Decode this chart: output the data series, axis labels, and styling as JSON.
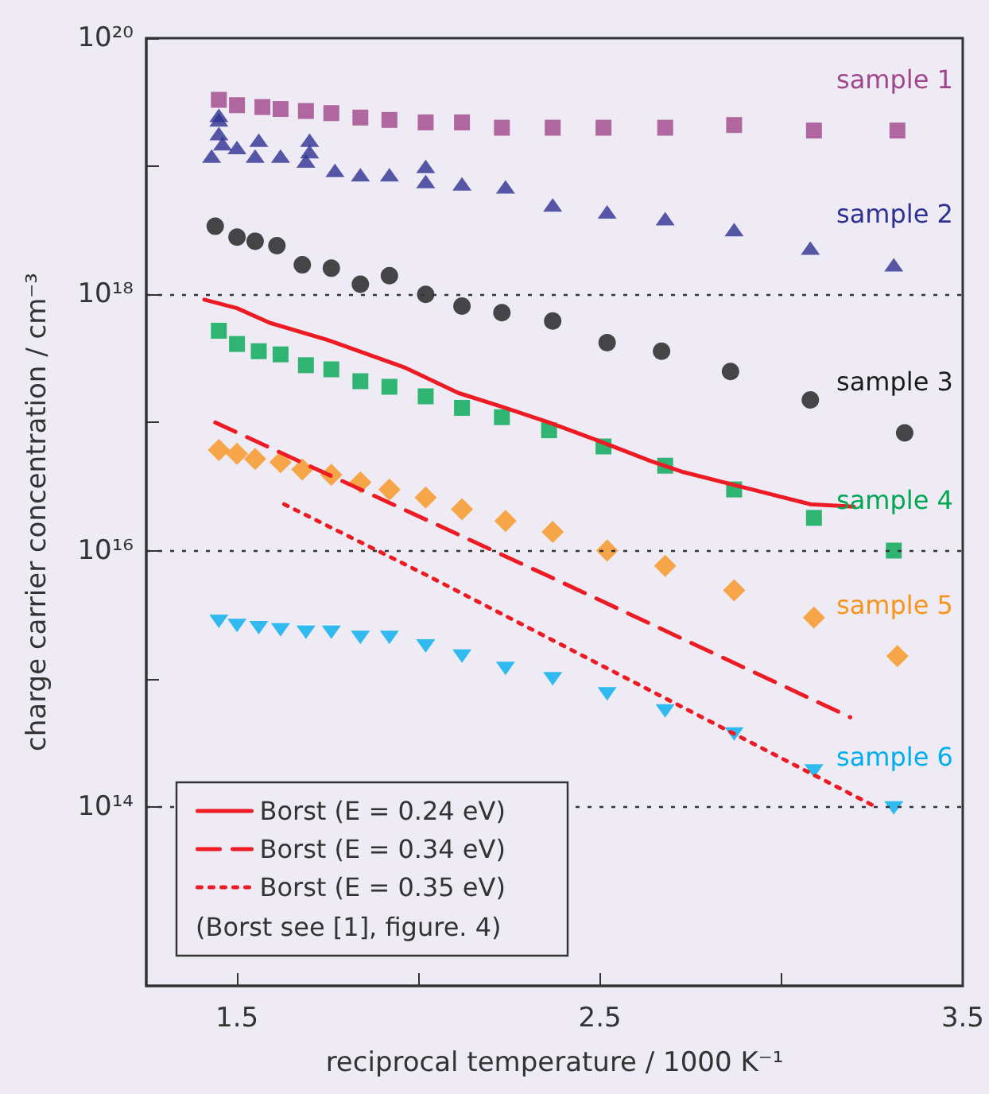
{
  "chart_data": {
    "type": "scatter",
    "xlabel": "reciprocal temperature / 1000 K⁻¹",
    "ylabel": "charge carrier concentration / cm⁻³",
    "xlim": [
      1.25,
      3.5
    ],
    "xticks": [
      1.5,
      {
        "value": 2,
        "label": null
      },
      2.5,
      {
        "value": 3,
        "label": null
      },
      3.5
    ],
    "ylim": [
      4000000000000.0,
      1e+20
    ],
    "yticks": [
      {
        "value": 100000000000000.0,
        "label": "10¹⁴"
      },
      {
        "value": 1000000000000000.0,
        "label": null
      },
      {
        "value": 1e+16,
        "label": "10¹⁶"
      },
      {
        "value": 1e+17,
        "label": null
      },
      {
        "value": 1e+18,
        "label": "10¹⁸"
      },
      {
        "value": 1e+19,
        "label": null
      },
      {
        "value": 1e+20,
        "label": "10²⁰"
      }
    ],
    "log": "y",
    "legend": "bottom left",
    "ref_lines": [
      {
        "axis": "y",
        "value": 1e+18,
        "color": "#333333",
        "line_style": "dotted"
      },
      {
        "axis": "y",
        "value": 1e+16,
        "color": "#333333",
        "line_style": "dotted"
      },
      {
        "axis": "y",
        "value": 100000000000000.0,
        "color": "#333333",
        "line_style": "dotted"
      }
    ],
    "annotations": [
      "(Borst see [1], figure. 4)"
    ],
    "series": [
      {
        "name": "sample 1",
        "marker": "square",
        "color": "#a0468a",
        "x": [
          1.45,
          1.5,
          1.57,
          1.62,
          1.69,
          1.76,
          1.84,
          1.92,
          2.02,
          2.12,
          2.23,
          2.37,
          2.51,
          2.68,
          2.87,
          3.09,
          3.32
        ],
        "values": [
          3.3e+19,
          3e+19,
          2.9e+19,
          2.8e+19,
          2.7e+19,
          2.6e+19,
          2.4e+19,
          2.3e+19,
          2.2e+19,
          2.2e+19,
          2e+19,
          2e+19,
          2e+19,
          2e+19,
          2.1e+19,
          1.9e+19,
          1.9e+19
        ]
      },
      {
        "name": "sample 2",
        "marker": "triangle",
        "color": "#2e3192",
        "x": [
          1.43,
          1.45,
          1.45,
          1.45,
          1.46,
          1.5,
          1.55,
          1.56,
          1.62,
          1.69,
          1.7,
          1.7,
          1.77,
          1.84,
          1.92,
          2.02,
          2.02,
          2.12,
          2.24,
          2.37,
          2.52,
          2.68,
          2.87,
          3.08,
          3.31
        ],
        "values": [
          1.2e+19,
          2.5e+19,
          2.3e+19,
          1.8e+19,
          1.5e+19,
          1.4e+19,
          1.2e+19,
          1.6e+19,
          1.2e+19,
          1.1e+19,
          1.6e+19,
          1.3e+19,
          9.3e+18,
          8.6e+18,
          8.6e+18,
          1e+19,
          7.6e+18,
          7.3e+18,
          6.9e+18,
          5e+18,
          4.4e+18,
          3.9e+18,
          3.2e+18,
          2.3e+18,
          1.7e+18
        ]
      },
      {
        "name": "sample 3",
        "marker": "circle",
        "color": "#1a1a1a",
        "x": [
          1.44,
          1.5,
          1.55,
          1.61,
          1.68,
          1.76,
          1.84,
          1.92,
          2.02,
          2.12,
          2.23,
          2.37,
          2.52,
          2.67,
          2.86,
          3.08,
          3.34
        ],
        "values": [
          3.4e+18,
          2.8e+18,
          2.6e+18,
          2.4e+18,
          1.7e+18,
          1.6e+18,
          1.2e+18,
          1.4e+18,
          1e+18,
          8.1e+17,
          7.2e+17,
          6.2e+17,
          4.2e+17,
          3.6e+17,
          2.5e+17,
          1.5e+17,
          8.3e+16
        ]
      },
      {
        "name": "sample 4",
        "marker": "square",
        "color": "#00a651",
        "x": [
          1.45,
          1.5,
          1.56,
          1.62,
          1.69,
          1.76,
          1.84,
          1.92,
          2.02,
          2.12,
          2.23,
          2.36,
          2.51,
          2.68,
          2.87,
          3.09,
          3.31
        ],
        "values": [
          5.2e+17,
          4.1e+17,
          3.6e+17,
          3.4e+17,
          2.8e+17,
          2.6e+17,
          2.1e+17,
          1.9e+17,
          1.6e+17,
          1.3e+17,
          1.1e+17,
          8.7e+16,
          6.5e+16,
          4.6e+16,
          3e+16,
          1.8e+16,
          1e+16
        ]
      },
      {
        "name": "sample 5",
        "marker": "diamond",
        "color": "#f7941d",
        "x": [
          1.45,
          1.5,
          1.55,
          1.62,
          1.68,
          1.76,
          1.84,
          1.92,
          2.02,
          2.12,
          2.24,
          2.37,
          2.52,
          2.68,
          2.87,
          3.09,
          3.32
        ],
        "values": [
          6.1e+16,
          5.7e+16,
          5.2e+16,
          4.9e+16,
          4.3e+16,
          3.9e+16,
          3.4e+16,
          3e+16,
          2.6e+16,
          2.1e+16,
          1.7e+16,
          1.4e+16,
          1e+16,
          7600000000000000.0,
          4900000000000000.0,
          3000000000000000.0,
          1500000000000000.0
        ]
      },
      {
        "name": "sample 6",
        "marker": "triangle-down",
        "color": "#00aeef",
        "x": [
          1.45,
          1.5,
          1.56,
          1.62,
          1.69,
          1.76,
          1.84,
          1.92,
          2.02,
          2.12,
          2.24,
          2.37,
          2.52,
          2.68,
          2.87,
          3.09,
          3.31
        ],
        "values": [
          2800000000000000.0,
          2600000000000000.0,
          2500000000000000.0,
          2400000000000000.0,
          2300000000000000.0,
          2300000000000000.0,
          2100000000000000.0,
          2100000000000000.0,
          1800000000000000.0,
          1500000000000000.0,
          1200000000000000.0,
          1000000000000000.0,
          760000000000000.0,
          560000000000000.0,
          370000000000000.0,
          190000000000000.0,
          98000000000000.0
        ]
      },
      {
        "name": "Borst (E = 0.24 eV)",
        "type": "line",
        "line_style": "solid",
        "marker": "none",
        "color": "#ed1c24",
        "x": [
          1.41,
          1.5,
          1.59,
          1.75,
          1.96,
          2.11,
          2.24,
          2.36,
          2.49,
          2.64,
          2.73,
          2.88,
          3.08,
          3.2
        ],
        "values": [
          9.1e+17,
          7.8e+17,
          6e+17,
          4.4e+17,
          2.7e+17,
          1.7e+17,
          1.3e+17,
          1e+17,
          7.3e+16,
          5e+16,
          4.1e+16,
          3.2e+16,
          2.3e+16,
          2.2e+16
        ]
      },
      {
        "name": "Borst (E = 0.34 eV)",
        "type": "line",
        "line_style": "dashed",
        "marker": "none",
        "color": "#ed1c24",
        "x": [
          1.44,
          2.37,
          3.19
        ],
        "values": [
          1e+17,
          6100000000000000.0,
          500000000000000.0
        ]
      },
      {
        "name": "Borst (E = 0.35 eV)",
        "type": "line",
        "line_style": "dotted",
        "marker": "none",
        "color": "#ed1c24",
        "x": [
          1.63,
          2.01,
          3.26
        ],
        "values": [
          2.3e+16,
          6700000000000000.0,
          100000000000000.0
        ]
      }
    ]
  }
}
